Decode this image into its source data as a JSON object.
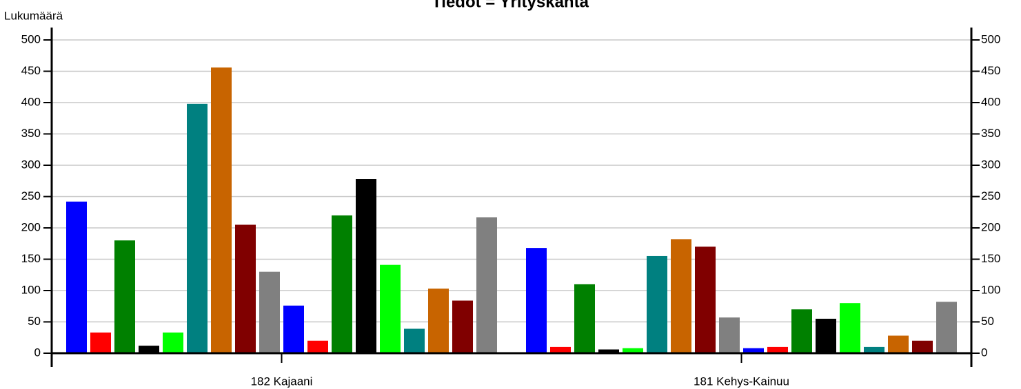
{
  "chart_data": {
    "type": "bar",
    "title": "Tiedot = Yrityskanta",
    "y_label": "Lukumäärä",
    "categories": [
      "182 Kajaani",
      "181 Kehys-Kainuu"
    ],
    "series": [
      {
        "color": "#0000ff",
        "values": [
          242,
          168
        ]
      },
      {
        "color": "#ff0000",
        "values": [
          33,
          10
        ]
      },
      {
        "color": "#008000",
        "values": [
          180,
          110
        ]
      },
      {
        "color": "#000000",
        "values": [
          12,
          6
        ]
      },
      {
        "color": "#00ff00",
        "values": [
          33,
          8
        ]
      },
      {
        "color": "#008080",
        "values": [
          398,
          155
        ]
      },
      {
        "color": "#c86400",
        "values": [
          456,
          182
        ]
      },
      {
        "color": "#800000",
        "values": [
          205,
          170
        ]
      },
      {
        "color": "#808080",
        "values": [
          130,
          57
        ]
      },
      {
        "color": "#0000ff",
        "values": [
          76,
          8
        ]
      },
      {
        "color": "#ff0000",
        "values": [
          20,
          10
        ]
      },
      {
        "color": "#008000",
        "values": [
          220,
          70
        ]
      },
      {
        "color": "#000000",
        "values": [
          278,
          55
        ]
      },
      {
        "color": "#00ff00",
        "values": [
          141,
          80
        ]
      },
      {
        "color": "#008080",
        "values": [
          39,
          10
        ]
      },
      {
        "color": "#c86400",
        "values": [
          103,
          28
        ]
      },
      {
        "color": "#800000",
        "values": [
          84,
          20
        ]
      },
      {
        "color": "#808080",
        "values": [
          217,
          82
        ]
      }
    ],
    "ylim": [
      0,
      500
    ],
    "yticks": [
      0,
      50,
      100,
      150,
      200,
      250,
      300,
      350,
      400,
      450,
      500
    ],
    "y2lim": [
      0,
      500
    ],
    "y2ticks": [
      0,
      50,
      100,
      150,
      200,
      250,
      300,
      350,
      400,
      450,
      500
    ],
    "grid": true
  }
}
